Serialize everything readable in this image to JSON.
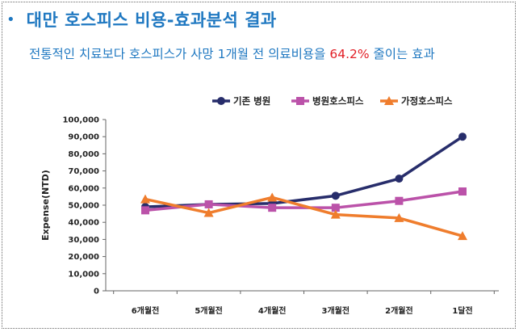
{
  "heading": {
    "bullet": "•",
    "title": "대만 호스피스 비용-효과분석 결과"
  },
  "subtitle": {
    "before": "전통적인 치료보다 호스피스가 사망 1개월 전 의료비용을 ",
    "highlight": "64.2%",
    "after": " 줄이는 효과"
  },
  "colors": {
    "title": "#1f78c1",
    "highlight": "#e21f26"
  },
  "chart_data": {
    "type": "line",
    "title": "",
    "xlabel": "",
    "ylabel": "Expense(NTD)",
    "categories": [
      "6개월전",
      "5개월전",
      "4개월전",
      "3개월전",
      "2개월전",
      "1달전"
    ],
    "ylim": [
      0,
      100000
    ],
    "yticks": [
      0,
      10000,
      20000,
      30000,
      40000,
      50000,
      60000,
      70000,
      80000,
      90000,
      100000
    ],
    "ytick_labels": [
      "0",
      "10,000",
      "20,000",
      "30,000",
      "40,000",
      "50,000",
      "60,000",
      "70,000",
      "80,000",
      "90,000",
      "100,000"
    ],
    "legend_position": "top-right",
    "grid": false,
    "series": [
      {
        "name": "기존 병원",
        "color": "#272d6b",
        "marker": "circle",
        "values": [
          49000,
          50500,
          51000,
          55500,
          65500,
          90000
        ]
      },
      {
        "name": "병원호스피스",
        "color": "#bb52a9",
        "marker": "square",
        "values": [
          47000,
          50500,
          48500,
          48500,
          52500,
          58000
        ]
      },
      {
        "name": "가정호스피스",
        "color": "#ef7d2d",
        "marker": "triangle",
        "values": [
          53500,
          45500,
          54500,
          44500,
          42500,
          32000
        ]
      }
    ]
  }
}
